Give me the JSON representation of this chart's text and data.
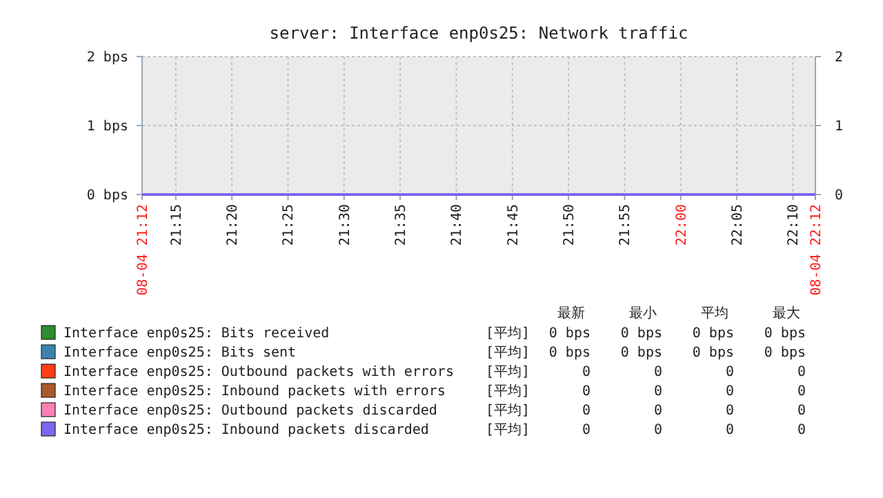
{
  "chart_data": {
    "type": "line",
    "title": "server: Interface enp0s25: Network traffic",
    "xlim": [
      21.2,
      22.2
    ],
    "xticks": [
      {
        "value": 21.2,
        "label": "08-04 21:12"
      },
      {
        "value": 21.25,
        "label": "21:15"
      },
      {
        "value": 21.3333,
        "label": "21:20"
      },
      {
        "value": 21.4167,
        "label": "21:25"
      },
      {
        "value": 21.5,
        "label": "21:30"
      },
      {
        "value": 21.5833,
        "label": "21:35"
      },
      {
        "value": 21.6667,
        "label": "21:40"
      },
      {
        "value": 21.75,
        "label": "21:45"
      },
      {
        "value": 21.8333,
        "label": "21:50"
      },
      {
        "value": 21.9167,
        "label": "21:55"
      },
      {
        "value": 22,
        "label": "22:00"
      },
      {
        "value": 22.0833,
        "label": "22:05"
      },
      {
        "value": 22.1667,
        "label": "22:10"
      },
      {
        "value": 22.2,
        "label": "08-04 22:12"
      }
    ],
    "ylim": [
      0,
      2
    ],
    "yticks": [
      {
        "value": 0,
        "label": "0 bps"
      },
      {
        "value": 1,
        "label": "1 bps"
      },
      {
        "value": 2,
        "label": "2 bps"
      }
    ],
    "y2lim": [
      0,
      2
    ],
    "y2ticks": [
      0,
      1,
      2
    ],
    "grid": true,
    "legend": "bottom",
    "line_style": "solid",
    "series": [
      {
        "name": "Interface enp0s25: Bits received",
        "color": "#2e8b2e",
        "values": [
          null,
          null
        ]
      },
      {
        "name": "Interface enp0s25: Bits sent",
        "color": "#3b82b0",
        "values": [
          null,
          null
        ]
      },
      {
        "name": "Interface enp0s25: Outbound packets with errors",
        "color": "#ff3d14",
        "values": [
          null,
          null
        ]
      },
      {
        "name": "Interface enp0s25: Inbound packets with errors",
        "color": "#a85a2a",
        "values": [
          null,
          null
        ]
      },
      {
        "name": "Interface enp0s25: Outbound packets discarded",
        "color": "#ff80b4",
        "values": [
          null,
          null
        ]
      },
      {
        "name": "Interface enp0s25: Inbound packets discarded",
        "color": "#7b68ee",
        "x": [
          21.2,
          22.2
        ],
        "values": [
          0,
          0
        ]
      }
    ],
    "annotations": [
      "最新",
      "最小",
      "平均",
      "最大",
      "[平均]",
      "0 bps",
      "0 bps",
      "0 bps",
      "0 bps",
      "[平均]",
      "0 bps",
      "0 bps",
      "0 bps",
      "0 bps",
      "[平均]",
      "0",
      "0",
      "0",
      "0",
      "[平均]",
      "0",
      "0",
      "0",
      "0",
      "[平均]",
      "0",
      "0",
      "0",
      "0",
      "[平均]",
      "0",
      "0",
      "0",
      "0"
    ]
  }
}
